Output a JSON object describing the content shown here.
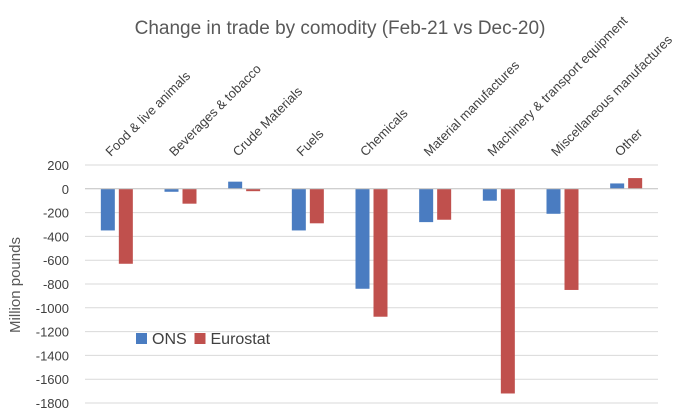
{
  "chart_data": {
    "type": "bar",
    "title": "Change in trade by comodity (Feb-21 vs Dec-20)",
    "xlabel": "",
    "ylabel": "Million pounds",
    "categories": [
      "Food & live animals",
      "Beverages & tobacco",
      "Crude Materials",
      "Fuels",
      "Chemicals",
      "Material manufactures",
      "Machinery & transport equipment",
      "Miscellaneous manufactures",
      "Other"
    ],
    "series": [
      {
        "name": "ONS",
        "color": "#4a7cc1",
        "values": [
          -350,
          -25,
          60,
          -350,
          -840,
          -280,
          -100,
          -210,
          45
        ]
      },
      {
        "name": "Eurostat",
        "color": "#c0504d",
        "values": [
          -630,
          -125,
          -20,
          -290,
          -1075,
          -260,
          -1720,
          -850,
          90
        ]
      }
    ],
    "ylim": [
      -1800,
      200
    ],
    "yticks": [
      200,
      0,
      -200,
      -400,
      -600,
      -800,
      -1000,
      -1200,
      -1400,
      -1600,
      -1800
    ],
    "grid": true,
    "legend_position": "lower-left"
  }
}
